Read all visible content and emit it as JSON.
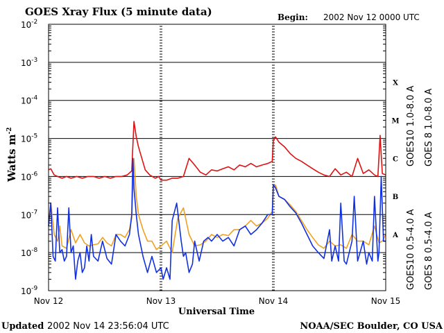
{
  "chart_data": {
    "type": "line",
    "title": "GOES Xray Flux (5 minute data)",
    "begin_label": "Begin:",
    "begin_value": "2002 Nov 12 0000 UTC",
    "ylabel": "Watts m",
    "ylabel_superscript": "-2",
    "xlabel": "Universal Time",
    "y_scale": "log",
    "ylim": [
      1e-09,
      0.01
    ],
    "y_ticks": [
      {
        "exp": "-2",
        "value": 0.01
      },
      {
        "exp": "-3",
        "value": 0.001
      },
      {
        "exp": "-4",
        "value": 0.0001
      },
      {
        "exp": "-5",
        "value": 1e-05
      },
      {
        "exp": "-6",
        "value": 1e-06
      },
      {
        "exp": "-7",
        "value": 1e-07
      },
      {
        "exp": "-8",
        "value": 1e-08
      },
      {
        "exp": "-9",
        "value": 1e-09
      }
    ],
    "y_tick_base": "10",
    "x_range_days": [
      0,
      3
    ],
    "x_ticks": [
      {
        "label": "Nov 12",
        "day": 0
      },
      {
        "label": "Nov 13",
        "day": 1
      },
      {
        "label": "Nov 14",
        "day": 2
      },
      {
        "label": "Nov 15",
        "day": 3
      }
    ],
    "flare_classes": [
      {
        "label": "X",
        "value": 0.0003
      },
      {
        "label": "M",
        "value": 3e-05
      },
      {
        "label": "C",
        "value": 3e-06
      },
      {
        "label": "B",
        "value": 3e-07
      },
      {
        "label": "A",
        "value": 3e-08
      }
    ],
    "grid": "horizontal at each decade",
    "legend": [
      {
        "name": "GOES10 1.0-8.0 A",
        "color": "#7030c0"
      },
      {
        "name": "GOES 8 1.0-8.0 A",
        "color": "#dd1111"
      },
      {
        "name": "GOES10 0.5-4.0 A",
        "color": "#f0a020"
      },
      {
        "name": "GOES 8 0.5-4.0 A",
        "color": "#1030e0"
      }
    ],
    "series": [
      {
        "name": "GOES 8 1.0-8.0 A",
        "color": "#dd1111",
        "x": [
          0,
          0.02,
          0.05,
          0.08,
          0.12,
          0.16,
          0.2,
          0.25,
          0.3,
          0.35,
          0.4,
          0.45,
          0.5,
          0.55,
          0.6,
          0.65,
          0.7,
          0.74,
          0.76,
          0.78,
          0.8,
          0.83,
          0.86,
          0.9,
          0.95,
          0.98,
          1.0,
          1.05,
          1.1,
          1.15,
          1.2,
          1.25,
          1.3,
          1.35,
          1.4,
          1.45,
          1.5,
          1.55,
          1.6,
          1.65,
          1.7,
          1.75,
          1.8,
          1.85,
          1.9,
          1.95,
          1.99,
          2.0,
          2.02,
          2.05,
          2.1,
          2.15,
          2.2,
          2.25,
          2.3,
          2.35,
          2.4,
          2.45,
          2.5,
          2.55,
          2.6,
          2.65,
          2.7,
          2.75,
          2.8,
          2.85,
          2.9,
          2.93,
          2.95,
          2.97,
          3.0
        ],
        "y": [
          1.5e-06,
          1.6e-06,
          1.1e-06,
          1e-06,
          9e-07,
          1e-06,
          9e-07,
          1e-06,
          9e-07,
          1e-06,
          1e-06,
          9e-07,
          1e-06,
          9e-07,
          1e-06,
          1e-06,
          1.1e-06,
          1.4e-06,
          2.8e-05,
          1.1e-05,
          6e-06,
          3e-06,
          1.5e-06,
          1.1e-06,
          9e-07,
          1e-06,
          8e-07,
          8e-07,
          9e-07,
          9e-07,
          1e-06,
          3e-06,
          2e-06,
          1.3e-06,
          1.1e-06,
          1.5e-06,
          1.4e-06,
          1.6e-06,
          1.8e-06,
          1.5e-06,
          2e-06,
          1.8e-06,
          2.2e-06,
          1.8e-06,
          2e-06,
          2.2e-06,
          2.5e-06,
          9e-06,
          1.1e-05,
          8e-06,
          6e-06,
          4e-06,
          3e-06,
          2.5e-06,
          2e-06,
          1.6e-06,
          1.3e-06,
          1.1e-06,
          1e-06,
          1.6e-06,
          1.1e-06,
          1.3e-06,
          1e-06,
          3e-06,
          1.2e-06,
          1.5e-06,
          1.1e-06,
          1e-06,
          1.2e-05,
          1.2e-06,
          1.1e-06
        ]
      },
      {
        "name": "GOES10 0.5-4.0 A",
        "color": "#f0a020",
        "x": [
          0,
          0.02,
          0.05,
          0.08,
          0.1,
          0.12,
          0.16,
          0.2,
          0.24,
          0.28,
          0.32,
          0.36,
          0.4,
          0.44,
          0.48,
          0.52,
          0.56,
          0.6,
          0.64,
          0.68,
          0.72,
          0.74,
          0.76,
          0.78,
          0.8,
          0.84,
          0.88,
          0.92,
          0.96,
          1.0,
          1.05,
          1.1,
          1.15,
          1.2,
          1.25,
          1.3,
          1.35,
          1.4,
          1.45,
          1.5,
          1.55,
          1.6,
          1.65,
          1.7,
          1.75,
          1.8,
          1.85,
          1.9,
          1.95,
          1.99,
          2.0,
          2.02,
          2.05,
          2.1,
          2.15,
          2.2,
          2.25,
          2.3,
          2.35,
          2.4,
          2.45,
          2.5,
          2.55,
          2.6,
          2.65,
          2.7,
          2.75,
          2.8,
          2.85,
          2.9,
          2.94,
          2.97,
          3.0
        ],
        "y": [
          6e-08,
          2e-07,
          3e-08,
          2e-08,
          5e-08,
          1.5e-08,
          1.3e-08,
          4e-08,
          1.8e-08,
          3e-08,
          1.8e-08,
          1.5e-08,
          1.6e-08,
          1.7e-08,
          2.5e-08,
          1.8e-08,
          1.5e-08,
          3e-08,
          3e-08,
          2.5e-08,
          4e-08,
          8e-08,
          3e-06,
          3e-07,
          1e-07,
          4e-08,
          2e-08,
          2e-08,
          1.2e-08,
          1.5e-08,
          2e-08,
          1e-08,
          8e-08,
          1.5e-07,
          3e-08,
          1.5e-08,
          1.6e-08,
          2e-08,
          3e-08,
          2.5e-08,
          3e-08,
          2.8e-08,
          4e-08,
          4e-08,
          5e-08,
          7e-08,
          5e-08,
          6e-08,
          8e-08,
          1.2e-07,
          5e-07,
          6e-07,
          3e-07,
          2.5e-07,
          1.8e-07,
          1.2e-07,
          7e-08,
          4e-08,
          2.5e-08,
          1.6e-08,
          1.3e-08,
          2e-08,
          1.5e-08,
          1.6e-08,
          1.3e-08,
          3e-08,
          2e-08,
          2e-08,
          1.6e-08,
          5e-08,
          1.8e-08,
          2e-08,
          3e-08
        ]
      },
      {
        "name": "GOES 8 0.5-4.0 A",
        "color": "#1030e0",
        "x": [
          0,
          0.02,
          0.04,
          0.06,
          0.08,
          0.1,
          0.12,
          0.14,
          0.16,
          0.18,
          0.2,
          0.22,
          0.24,
          0.26,
          0.28,
          0.3,
          0.32,
          0.34,
          0.36,
          0.38,
          0.4,
          0.44,
          0.48,
          0.52,
          0.56,
          0.6,
          0.64,
          0.68,
          0.72,
          0.74,
          0.75,
          0.76,
          0.78,
          0.8,
          0.84,
          0.88,
          0.92,
          0.96,
          1.0,
          1.02,
          1.05,
          1.08,
          1.1,
          1.14,
          1.18,
          1.2,
          1.22,
          1.25,
          1.28,
          1.3,
          1.34,
          1.38,
          1.42,
          1.45,
          1.5,
          1.55,
          1.6,
          1.65,
          1.7,
          1.75,
          1.8,
          1.85,
          1.9,
          1.95,
          1.99,
          2.0,
          2.02,
          2.05,
          2.1,
          2.15,
          2.2,
          2.25,
          2.3,
          2.35,
          2.4,
          2.45,
          2.5,
          2.52,
          2.55,
          2.58,
          2.6,
          2.63,
          2.65,
          2.7,
          2.72,
          2.75,
          2.8,
          2.83,
          2.85,
          2.88,
          2.9,
          2.93,
          2.94,
          2.96,
          2.98,
          3.0
        ],
        "y": [
          5e-08,
          2e-07,
          8e-09,
          6e-09,
          1.5e-07,
          1e-08,
          1.2e-08,
          6e-09,
          8e-09,
          1.5e-07,
          1e-08,
          1.5e-08,
          2e-09,
          6e-09,
          1e-08,
          3e-09,
          4e-09,
          1.5e-08,
          6e-09,
          3e-08,
          8e-09,
          6e-09,
          2e-08,
          7e-09,
          5e-09,
          3e-08,
          2e-08,
          1.5e-08,
          3e-08,
          1e-07,
          3e-06,
          5e-07,
          1e-07,
          3e-08,
          8e-09,
          3e-09,
          8e-09,
          3e-09,
          4e-09,
          2e-09,
          4e-09,
          2e-09,
          7e-08,
          2e-07,
          2e-08,
          8e-09,
          1e-08,
          3e-09,
          5e-09,
          2e-08,
          6e-09,
          2e-08,
          2.5e-08,
          2e-08,
          3e-08,
          2e-08,
          2.5e-08,
          1.5e-08,
          4e-08,
          5e-08,
          3e-08,
          4e-08,
          6e-08,
          1e-07,
          1e-07,
          6e-07,
          5e-07,
          3e-07,
          2.5e-07,
          1.6e-07,
          1.1e-07,
          6e-08,
          3e-08,
          1.5e-08,
          1e-08,
          7e-09,
          4e-08,
          6e-09,
          1.5e-08,
          6e-09,
          2e-07,
          6e-09,
          5e-09,
          2e-08,
          3e-07,
          6e-09,
          2e-08,
          5e-09,
          1e-08,
          6e-09,
          3e-07,
          6e-09,
          1e-08,
          1e-06,
          2e-08,
          2e-08
        ]
      }
    ]
  },
  "footer": {
    "updated_label": "Updated",
    "updated_value": "2002 Nov 14 23:56:04 UTC",
    "source": "NOAA/SEC Boulder, CO USA"
  }
}
